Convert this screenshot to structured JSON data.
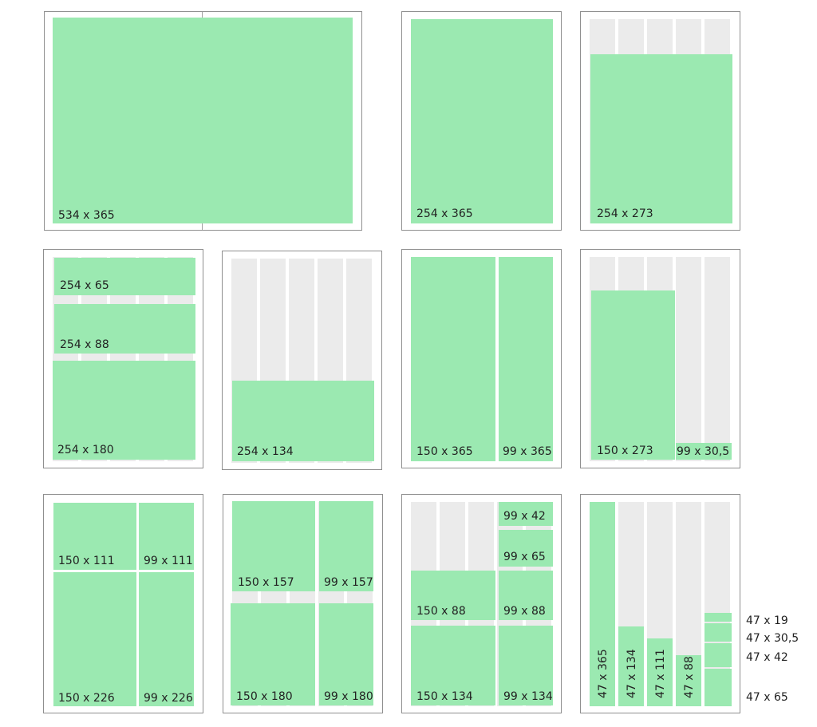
{
  "colors": {
    "ad": "#9be9b1",
    "column": "#ebebeb",
    "border": "#8f8f8f"
  },
  "ads": {
    "p1": [
      "534 x 365"
    ],
    "p2": [
      "254 x 365"
    ],
    "p3": [
      "254 x 273"
    ],
    "p4": [
      "254 x 65",
      "254 x 88",
      "254 x 180"
    ],
    "p5": [
      "254 x 134"
    ],
    "p6": [
      "150 x 365",
      "99 x 365"
    ],
    "p7": [
      "150 x 273",
      "99 x 30,5"
    ],
    "p8": [
      "150 x 111",
      "99 x 111",
      "150 x 226",
      "99 x 226"
    ],
    "p9": [
      "150 x 157",
      "99 x 157",
      "150 x 180",
      "99 x 180"
    ],
    "p10": [
      "99 x 42",
      "99 x 65",
      "150 x 88",
      "99 x 88",
      "150 x 134",
      "99 x 134"
    ],
    "p11": [
      "47 x 365",
      "47 x 134",
      "47 x 111",
      "47 x 88",
      "47 x 19",
      "47 x 30,5",
      "47 x 42",
      "47 x 65"
    ]
  }
}
